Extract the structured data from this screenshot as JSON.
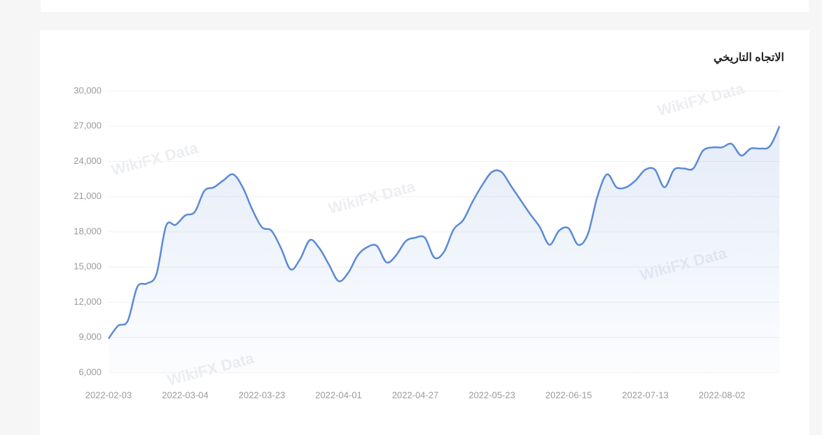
{
  "chart_data": {
    "type": "line",
    "title": "الاتجاه التاريخي",
    "watermark": "WikiFX Data",
    "categories": [
      "2022-02-03",
      null,
      null,
      null,
      null,
      null,
      null,
      null,
      "2022-03-04",
      null,
      null,
      null,
      null,
      null,
      null,
      null,
      "2022-03-23",
      null,
      null,
      null,
      null,
      null,
      null,
      null,
      "2022-04-01",
      null,
      null,
      null,
      null,
      null,
      null,
      null,
      "2022-04-27",
      null,
      null,
      null,
      null,
      null,
      null,
      null,
      "2022-05-23",
      null,
      null,
      null,
      null,
      null,
      null,
      null,
      "2022-06-15",
      null,
      null,
      null,
      null,
      null,
      null,
      null,
      "2022-07-13",
      null,
      null,
      null,
      null,
      null,
      null,
      null,
      "2022-08-02",
      null,
      null,
      null,
      null,
      null,
      null
    ],
    "values": [
      8900,
      10000,
      10400,
      13300,
      13600,
      14400,
      18500,
      18600,
      19400,
      19700,
      21500,
      21800,
      22400,
      22900,
      21800,
      19900,
      18400,
      18100,
      16600,
      14800,
      15700,
      17300,
      16600,
      15200,
      13800,
      14500,
      16000,
      16700,
      16800,
      15400,
      16000,
      17200,
      17500,
      17500,
      15800,
      16300,
      18200,
      19000,
      20600,
      22000,
      23100,
      23100,
      21900,
      20700,
      19500,
      18400,
      16900,
      18100,
      18300,
      16900,
      17800,
      21000,
      22900,
      21800,
      21800,
      22400,
      23300,
      23300,
      21800,
      23300,
      23400,
      23400,
      24900,
      25200,
      25200,
      25500,
      24500,
      25100,
      25100,
      25300,
      27000
    ],
    "color": "#5b8ad6",
    "ylim": [
      6000,
      30000
    ],
    "yticks": [
      {
        "value": 6000,
        "label": "6,000"
      },
      {
        "value": 9000,
        "label": "9,000"
      },
      {
        "value": 12000,
        "label": "12,000"
      },
      {
        "value": 15000,
        "label": "15,000"
      },
      {
        "value": 18000,
        "label": "18,000"
      },
      {
        "value": 21000,
        "label": "21,000"
      },
      {
        "value": 24000,
        "label": "24,000"
      },
      {
        "value": 27000,
        "label": "27,000"
      },
      {
        "value": 30000,
        "label": "30,000"
      }
    ],
    "grid": true
  }
}
